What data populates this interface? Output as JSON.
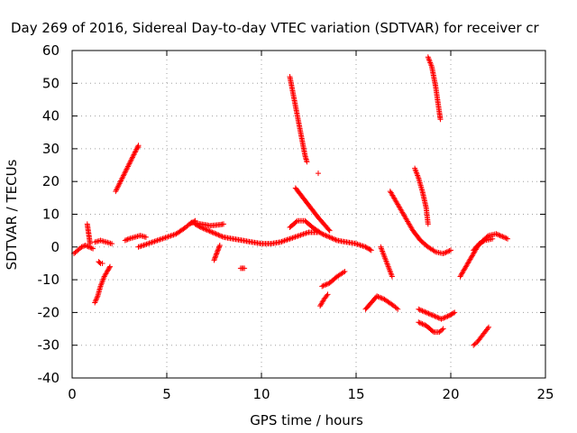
{
  "chart_data": {
    "type": "scatter",
    "title": "Day 269 of 2016, Sidereal Day-to-day VTEC variation (SDTVAR) for receiver cr",
    "xlabel": "GPS time / hours",
    "ylabel": "SDTVAR / TECUs",
    "xlim": [
      0,
      25
    ],
    "ylim": [
      -40,
      60
    ],
    "xticks": [
      0,
      5,
      10,
      15,
      20,
      25
    ],
    "yticks": [
      -40,
      -30,
      -20,
      -10,
      0,
      10,
      20,
      30,
      40,
      50,
      60
    ],
    "grid": true,
    "marker": "plus",
    "series_color": "#ff0000",
    "series": [
      {
        "name": "arc-early-low",
        "points": [
          [
            0.1,
            -2
          ],
          [
            0.3,
            -1
          ],
          [
            0.5,
            0
          ],
          [
            0.7,
            0.5
          ],
          [
            0.9,
            0
          ],
          [
            1.1,
            -0.5
          ]
        ]
      },
      {
        "name": "arc-early-rise",
        "points": [
          [
            0.8,
            7
          ],
          [
            0.85,
            5
          ],
          [
            0.9,
            3
          ],
          [
            0.95,
            1
          ]
        ]
      },
      {
        "name": "arc-early-mid",
        "points": [
          [
            1.2,
            1.5
          ],
          [
            1.5,
            2
          ],
          [
            1.8,
            1.5
          ],
          [
            2.1,
            1
          ]
        ]
      },
      {
        "name": "arc-early-dip",
        "points": [
          [
            1.4,
            -4.5
          ],
          [
            1.5,
            -5
          ],
          [
            1.6,
            -5
          ]
        ]
      },
      {
        "name": "arc-early-steep",
        "points": [
          [
            1.2,
            -17
          ],
          [
            1.35,
            -15
          ],
          [
            1.5,
            -12
          ],
          [
            1.7,
            -9
          ],
          [
            1.9,
            -7
          ],
          [
            2.0,
            -6
          ]
        ]
      },
      {
        "name": "isolated-1",
        "points": [
          [
            2.3,
            17
          ],
          [
            3.5,
            31
          ],
          [
            3.5,
            30.5
          ]
        ]
      },
      {
        "name": "arc-main-1",
        "points": [
          [
            2.8,
            2
          ],
          [
            3.0,
            2.5
          ],
          [
            3.3,
            3
          ],
          [
            3.6,
            3.5
          ],
          [
            3.9,
            3
          ]
        ]
      },
      {
        "name": "arc-main-2",
        "points": [
          [
            3.5,
            0
          ],
          [
            4.0,
            1
          ],
          [
            4.5,
            2
          ],
          [
            5.0,
            3
          ],
          [
            5.5,
            4
          ],
          [
            6.0,
            6
          ],
          [
            6.2,
            7
          ],
          [
            6.5,
            8
          ]
        ]
      },
      {
        "name": "arc-main-3",
        "points": [
          [
            6.5,
            7
          ],
          [
            6.8,
            6
          ],
          [
            7.2,
            5
          ],
          [
            7.6,
            4
          ],
          [
            8.0,
            3
          ],
          [
            8.5,
            2.5
          ],
          [
            9.0,
            2
          ],
          [
            9.5,
            1.5
          ],
          [
            10.0,
            1
          ],
          [
            10.5,
            1
          ],
          [
            11.0,
            1.5
          ],
          [
            11.5,
            2.5
          ],
          [
            12.0,
            3.5
          ],
          [
            12.5,
            4.5
          ],
          [
            13.0,
            4.5
          ]
        ]
      },
      {
        "name": "arc-main-4",
        "points": [
          [
            6.3,
            7.5
          ],
          [
            6.8,
            7
          ],
          [
            7.3,
            6.5
          ],
          [
            7.8,
            6.8
          ],
          [
            8.0,
            7
          ]
        ]
      },
      {
        "name": "arc-dip-7",
        "points": [
          [
            7.5,
            -4
          ],
          [
            7.6,
            -2.5
          ],
          [
            7.7,
            -1
          ],
          [
            7.8,
            0.5
          ]
        ]
      },
      {
        "name": "isolated-9",
        "points": [
          [
            8.9,
            -6.5
          ],
          [
            9.1,
            -6.5
          ]
        ]
      },
      {
        "name": "arc-high-12",
        "points": [
          [
            11.5,
            52
          ],
          [
            11.6,
            49
          ],
          [
            11.7,
            46
          ],
          [
            11.8,
            43
          ],
          [
            11.9,
            40
          ],
          [
            12.0,
            37
          ],
          [
            12.1,
            34
          ],
          [
            12.2,
            31
          ],
          [
            12.3,
            28
          ],
          [
            12.4,
            26
          ]
        ]
      },
      {
        "name": "isolated-13",
        "points": [
          [
            13.0,
            22.5
          ]
        ]
      },
      {
        "name": "arc-12-down",
        "points": [
          [
            11.8,
            18
          ],
          [
            12.2,
            15
          ],
          [
            12.6,
            12
          ],
          [
            13.0,
            9
          ],
          [
            13.3,
            7
          ],
          [
            13.6,
            5
          ]
        ]
      },
      {
        "name": "arc-12-mid",
        "points": [
          [
            11.5,
            6
          ],
          [
            11.9,
            8
          ],
          [
            12.3,
            8
          ],
          [
            12.7,
            6
          ],
          [
            13.2,
            4
          ],
          [
            13.6,
            3
          ],
          [
            14.0,
            2
          ],
          [
            14.5,
            1.5
          ],
          [
            15.0,
            1
          ],
          [
            15.5,
            0
          ],
          [
            15.8,
            -1
          ]
        ]
      },
      {
        "name": "arc-13-neg",
        "points": [
          [
            13.2,
            -12
          ],
          [
            13.6,
            -11
          ],
          [
            14.0,
            -9
          ],
          [
            14.4,
            -7.5
          ]
        ]
      },
      {
        "name": "arc-13-neg2",
        "points": [
          [
            13.1,
            -18
          ],
          [
            13.3,
            -16
          ],
          [
            13.5,
            -14.5
          ]
        ]
      },
      {
        "name": "arc-16-neg",
        "points": [
          [
            15.5,
            -19
          ],
          [
            15.8,
            -17
          ],
          [
            16.1,
            -15
          ],
          [
            16.5,
            -16
          ],
          [
            17.0,
            -18
          ],
          [
            17.2,
            -19
          ]
        ]
      },
      {
        "name": "arc-16-drop",
        "points": [
          [
            16.3,
            0
          ],
          [
            16.5,
            -3
          ],
          [
            16.7,
            -6
          ],
          [
            16.9,
            -9
          ]
        ]
      },
      {
        "name": "arc-17-down",
        "points": [
          [
            16.8,
            17
          ],
          [
            17.2,
            13
          ],
          [
            17.6,
            9
          ],
          [
            18.0,
            5
          ],
          [
            18.4,
            2
          ],
          [
            18.8,
            0
          ],
          [
            19.2,
            -1.5
          ],
          [
            19.6,
            -2
          ],
          [
            20.0,
            -1
          ]
        ]
      },
      {
        "name": "arc-18-high",
        "points": [
          [
            18.1,
            24
          ],
          [
            18.3,
            21
          ],
          [
            18.5,
            17
          ],
          [
            18.7,
            12
          ],
          [
            18.8,
            7
          ]
        ]
      },
      {
        "name": "arc-19-high",
        "points": [
          [
            18.8,
            58
          ],
          [
            19.0,
            55
          ],
          [
            19.1,
            52
          ],
          [
            19.2,
            49
          ],
          [
            19.3,
            45
          ],
          [
            19.4,
            41
          ],
          [
            19.45,
            39
          ]
        ]
      },
      {
        "name": "arc-19-neg",
        "points": [
          [
            18.3,
            -19
          ],
          [
            18.7,
            -20
          ],
          [
            19.1,
            -21
          ],
          [
            19.5,
            -22
          ],
          [
            19.9,
            -21
          ],
          [
            20.2,
            -20
          ]
        ]
      },
      {
        "name": "arc-19-neg2",
        "points": [
          [
            18.3,
            -23
          ],
          [
            18.7,
            -24
          ],
          [
            19.1,
            -26
          ],
          [
            19.4,
            -26
          ],
          [
            19.6,
            -25
          ]
        ]
      },
      {
        "name": "arc-21-rise",
        "points": [
          [
            20.5,
            -9
          ],
          [
            20.8,
            -6
          ],
          [
            21.1,
            -3
          ],
          [
            21.4,
            0
          ],
          [
            21.7,
            2
          ],
          [
            22.0,
            3.5
          ],
          [
            22.4,
            4
          ],
          [
            22.8,
            3
          ],
          [
            23.0,
            2.5
          ]
        ]
      },
      {
        "name": "arc-21-mid",
        "points": [
          [
            21.2,
            -1
          ],
          [
            21.5,
            1
          ],
          [
            21.8,
            2
          ],
          [
            22.2,
            2.5
          ]
        ]
      },
      {
        "name": "arc-21-neg",
        "points": [
          [
            21.2,
            -30
          ],
          [
            21.4,
            -29
          ],
          [
            21.6,
            -27.5
          ],
          [
            21.8,
            -26
          ],
          [
            22.0,
            -24.5
          ]
        ]
      }
    ]
  }
}
